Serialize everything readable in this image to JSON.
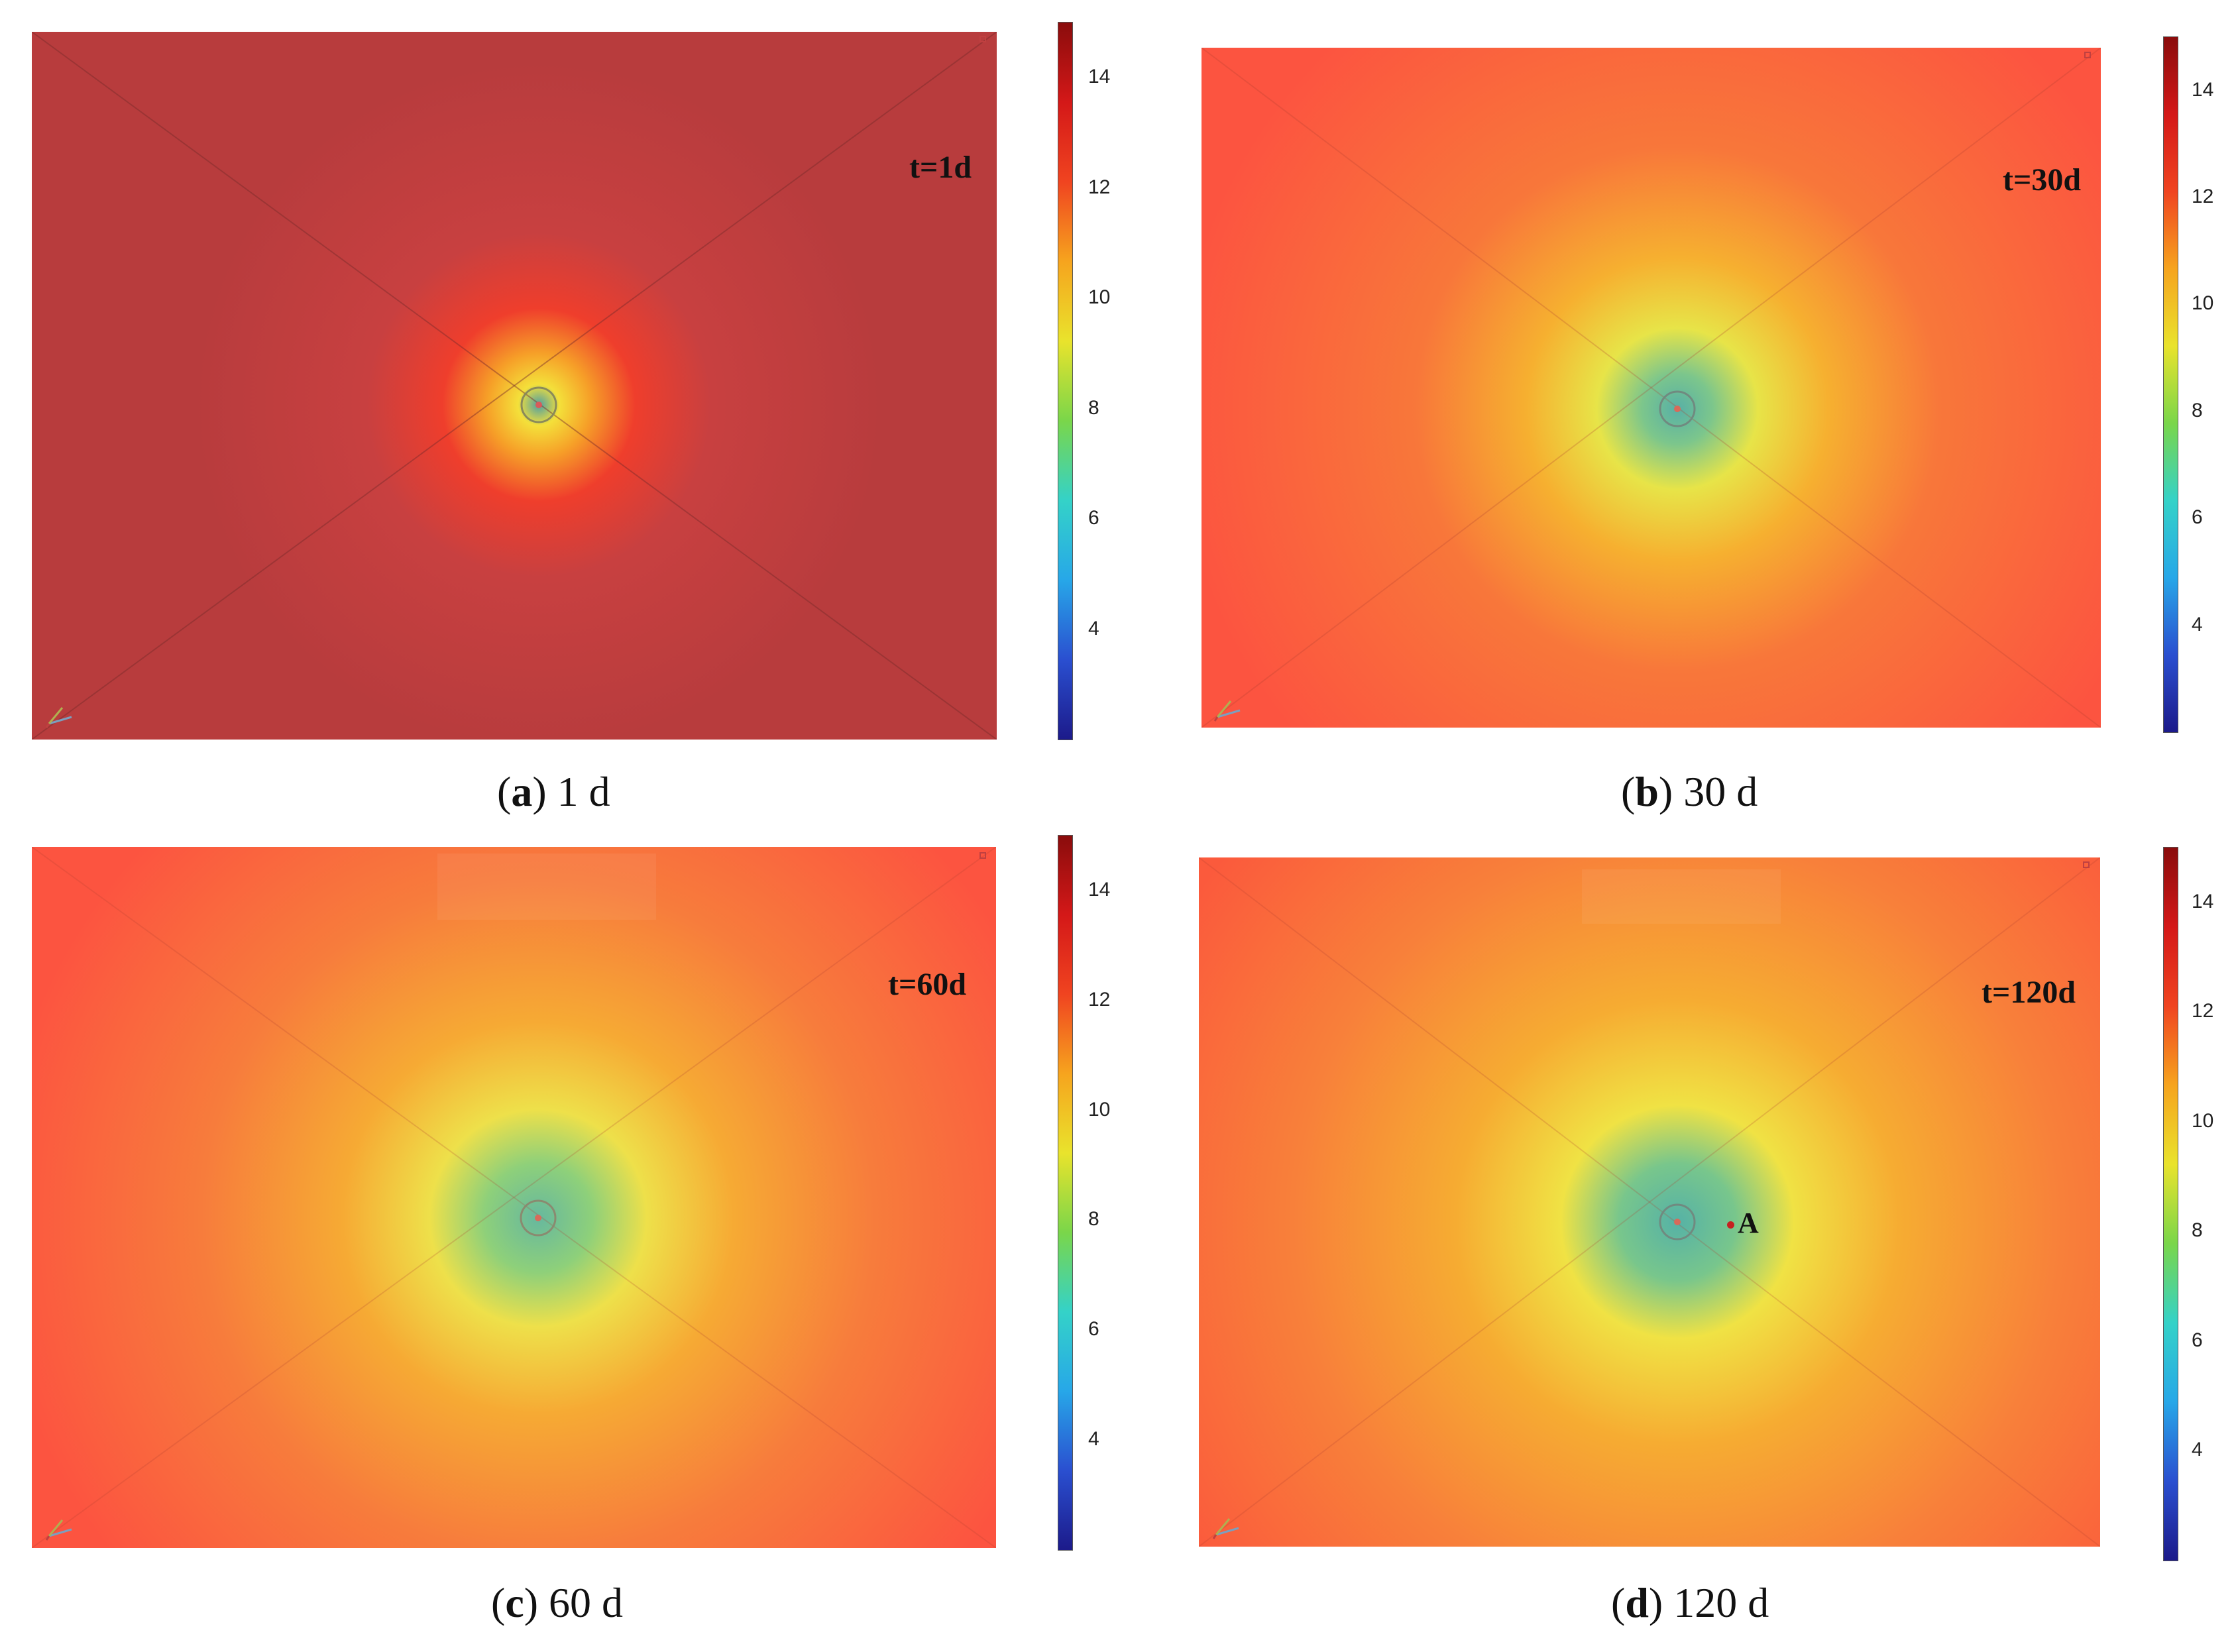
{
  "panels": [
    {
      "id": "a",
      "time_label": "t=1d",
      "caption_letter": "a",
      "caption_value": "1 d",
      "background_color": "#b83c3d",
      "contour_stops": [
        {
          "offset": 0.0,
          "color": "#4f9ea3"
        },
        {
          "offset": 0.06,
          "color": "#f4e03a"
        },
        {
          "offset": 0.15,
          "color": "#f6a028"
        },
        {
          "offset": 0.28,
          "color": "#ef3e2c"
        },
        {
          "offset": 0.5,
          "color": "#c84040"
        },
        {
          "offset": 1.0,
          "color": "#b83c3d"
        }
      ]
    },
    {
      "id": "b",
      "time_label": "t=30d",
      "caption_letter": "b",
      "caption_value": "30 d",
      "background_color": "#fc5440",
      "contour_stops": [
        {
          "offset": 0.0,
          "color": "#58b0a6"
        },
        {
          "offset": 0.07,
          "color": "#7cc68c"
        },
        {
          "offset": 0.16,
          "color": "#e7e448"
        },
        {
          "offset": 0.3,
          "color": "#f6b030"
        },
        {
          "offset": 0.52,
          "color": "#f8773a"
        },
        {
          "offset": 1.0,
          "color": "#fc5440"
        }
      ]
    },
    {
      "id": "c",
      "time_label": "t=60d",
      "caption_letter": "c",
      "caption_value": "60 d",
      "background_color": "#fc5440",
      "contour_stops": [
        {
          "offset": 0.0,
          "color": "#67b89e"
        },
        {
          "offset": 0.1,
          "color": "#8ed07a"
        },
        {
          "offset": 0.2,
          "color": "#eee04a"
        },
        {
          "offset": 0.36,
          "color": "#f6aa34"
        },
        {
          "offset": 0.62,
          "color": "#f77c3c"
        },
        {
          "offset": 1.0,
          "color": "#fc5440"
        }
      ]
    },
    {
      "id": "d",
      "time_label": "t=120d",
      "caption_letter": "d",
      "caption_value": "120 d",
      "background_color": "#fb5a3c",
      "point_label": "A",
      "contour_stops": [
        {
          "offset": 0.0,
          "color": "#56b2a6"
        },
        {
          "offset": 0.1,
          "color": "#78c68c"
        },
        {
          "offset": 0.2,
          "color": "#f0e244"
        },
        {
          "offset": 0.38,
          "color": "#f6ac32"
        },
        {
          "offset": 0.66,
          "color": "#f8803a"
        },
        {
          "offset": 1.0,
          "color": "#fb5a3c"
        }
      ]
    }
  ],
  "colorbar": {
    "min": 2,
    "max": 15,
    "ticks": [
      "14",
      "12",
      "10",
      "8",
      "6",
      "4"
    ],
    "tick_values": [
      14,
      12,
      10,
      8,
      6,
      4
    ],
    "colormap": [
      "#1c1a8a",
      "#2a4fd0",
      "#27a7e8",
      "#34d2c8",
      "#7ad64a",
      "#e9e32c",
      "#f6a41e",
      "#f04420",
      "#d41818",
      "#8a0c0c"
    ]
  }
}
